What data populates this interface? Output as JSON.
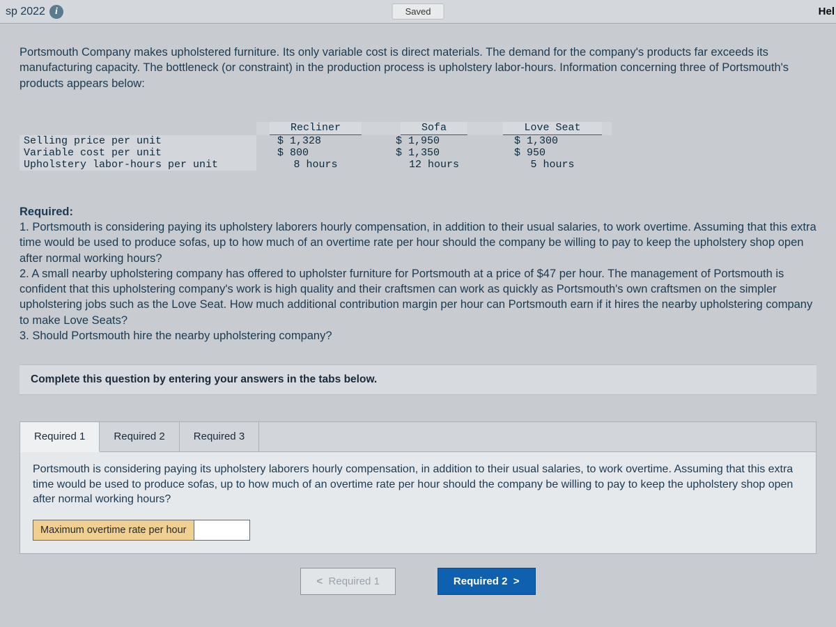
{
  "topbar": {
    "left_text": "sp 2022",
    "saved_label": "Saved",
    "help_label": "Hel"
  },
  "intro": "Portsmouth Company makes upholstered furniture. Its only variable cost is direct materials. The demand for the company's products far exceeds its manufacturing capacity. The bottleneck (or constraint) in the production process is upholstery labor-hours. Information concerning three of Portsmouth's products appears below:",
  "table": {
    "type": "table",
    "font_family": "Courier New",
    "columns": [
      "Recliner",
      "Sofa",
      "Love Seat"
    ],
    "rows": [
      {
        "label": "Selling price per unit",
        "values": [
          "$ 1,328",
          "$ 1,950",
          "$ 1,300"
        ]
      },
      {
        "label": "Variable cost per unit",
        "values": [
          "$ 800",
          "$ 1,350",
          "$ 950"
        ]
      },
      {
        "label": "Upholstery labor-hours per unit",
        "values": [
          "8 hours",
          "12 hours",
          "5 hours"
        ]
      }
    ],
    "header_bg": "#d6dade",
    "label_shade_bg": "#d3d7db",
    "text_color": "#0a2a3f"
  },
  "required": {
    "title": "Required:",
    "q1": "1. Portsmouth is considering paying its upholstery laborers hourly compensation, in addition to their usual salaries, to work overtime. Assuming that this extra time would be used to produce sofas, up to how much of an overtime rate per hour should the company be willing to pay to keep the upholstery shop open after normal working hours?",
    "q2": "2.  A small nearby upholstering company has offered to upholster furniture for Portsmouth at a price of $47 per hour. The management of Portsmouth is confident that this upholstering company's work is high quality and their craftsmen can work as quickly as Portsmouth's own craftsmen on the simpler upholstering jobs such as the Love Seat. How much additional contribution margin per hour can Portsmouth earn if it hires the nearby upholstering company to make Love Seats?",
    "q3": "3. Should Portsmouth hire the nearby upholstering company?"
  },
  "instruction": "Complete this question by entering your answers in the tabs below.",
  "tabs": {
    "items": [
      {
        "label": "Required 1",
        "active": true
      },
      {
        "label": "Required 2",
        "active": false
      },
      {
        "label": "Required 3",
        "active": false
      }
    ],
    "body_text": "Portsmouth is considering paying its upholstery laborers hourly compensation, in addition to their usual salaries, to work overtime. Assuming that this extra time would be used to produce sofas, up to how much of an overtime rate per hour should the company be willing to pay to keep the upholstery shop open after normal working hours?",
    "answer_label": "Maximum overtime rate per hour",
    "answer_value": ""
  },
  "nav": {
    "prev": "Required 1",
    "next": "Required 2"
  },
  "colors": {
    "page_bg": "#c8ccd0",
    "text_primary": "#1a3a52",
    "highlight_bg": "#f0d090",
    "button_primary_bg": "#1060b0",
    "button_primary_text": "#ffffff",
    "border": "#a8b0b8"
  }
}
